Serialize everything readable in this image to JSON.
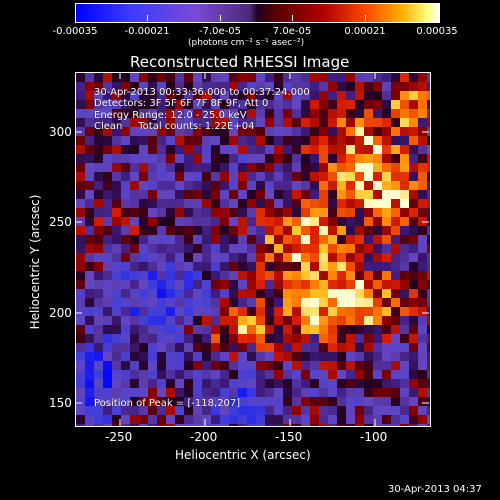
{
  "colorbar": {
    "tick_labels": [
      "-0.00035",
      "-0.00021",
      "-7.0e-05",
      "7.0e-05",
      "0.00021",
      "0.00035"
    ],
    "units": "(photons cm⁻² s⁻¹ asec⁻²)"
  },
  "title": "Reconstructed RHESSI Image",
  "info": {
    "line1": "30-Apr-2013 00:33:36.000 to 00:37:24.000",
    "line2": "Detectors: 3F 5F 6F 7F 8F 9F, Att 0",
    "line3": "Energy Range: 12.0 - 25.0 keV",
    "line4": "Clean     Total counts: 1.22E+04",
    "peak": "Position of Peak = [-118,207]"
  },
  "x_axis": {
    "title": "Heliocentric X (arcsec)",
    "ticks": [
      "-250",
      "-200",
      "-150",
      "-100"
    ]
  },
  "y_axis": {
    "title": "Heliocentric Y (arcsec)",
    "ticks": [
      "150",
      "200",
      "250",
      "300"
    ]
  },
  "footer": "30-Apr-2013 04:37",
  "colors": {
    "background": "#000000",
    "negative": "#0000ff",
    "neutral": "#3b1a8a",
    "positive": "#ff4a00",
    "peak": "#ffffff"
  }
}
